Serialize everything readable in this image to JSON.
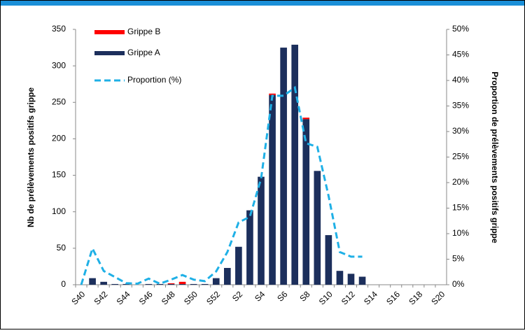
{
  "chart_data": {
    "type": "bar",
    "y_label": "Nb de prélèvements positifs grippe",
    "y2_label": "Proportion de prélèvements positifs grippe",
    "categories": [
      "S40",
      null,
      "S42",
      null,
      "S44",
      null,
      "S46",
      null,
      "S48",
      null,
      "S50",
      null,
      "S52",
      null,
      "S2",
      null,
      "S4",
      null,
      "S6",
      null,
      "S8",
      null,
      "S10",
      null,
      "S12",
      null,
      "S14",
      null,
      "S16",
      null,
      "S18",
      null,
      "S20"
    ],
    "series": [
      {
        "name": "Grippe A",
        "color": "#1c2f5c",
        "values": [
          0,
          9,
          4,
          1,
          1,
          0,
          1,
          1,
          1,
          1,
          1,
          1,
          9,
          23,
          52,
          102,
          148,
          260,
          325,
          329,
          227,
          156,
          68,
          19,
          15,
          11,
          0,
          0,
          0,
          0,
          0,
          0,
          0
        ]
      },
      {
        "name": "Grippe B",
        "color": "#ff0000",
        "values": [
          0,
          0,
          0,
          0,
          0,
          0,
          0,
          0,
          1,
          3,
          0,
          0,
          0,
          0,
          0,
          0,
          0,
          2,
          0,
          0,
          2,
          0,
          0,
          0,
          0,
          0,
          0,
          0,
          0,
          0,
          0,
          0,
          0
        ]
      },
      {
        "name": "Proportion (%)",
        "type": "line",
        "axis": "y2",
        "color": "#1fb0e6",
        "dashed": true,
        "values": [
          0,
          7.1,
          2.7,
          1.5,
          0.3,
          0.2,
          1.2,
          0.2,
          1.0,
          1.9,
          1.0,
          0.7,
          2.6,
          6.4,
          12.2,
          13.3,
          20.8,
          37,
          37,
          38.6,
          27.7,
          27,
          17.4,
          6.4,
          5.5,
          5.5,
          null,
          null,
          null,
          null,
          null,
          null,
          null
        ]
      }
    ],
    "ylim": [
      0,
      350
    ],
    "yticks": [
      0,
      50,
      100,
      150,
      200,
      250,
      300,
      350
    ],
    "y2lim": [
      0,
      50
    ],
    "y2ticks": [
      {
        "value": 0,
        "label": "0%"
      },
      {
        "value": 5,
        "label": "5%"
      },
      {
        "value": 10,
        "label": "10%"
      },
      {
        "value": 15,
        "label": "15%"
      },
      {
        "value": 20,
        "label": "20%"
      },
      {
        "value": 25,
        "label": "25%"
      },
      {
        "value": 30,
        "label": "30%"
      },
      {
        "value": 35,
        "label": "35%"
      },
      {
        "value": 40,
        "label": "40%"
      },
      {
        "value": 45,
        "label": "45%"
      },
      {
        "value": 50,
        "label": "50%"
      }
    ],
    "stacked": true,
    "grid": false
  }
}
